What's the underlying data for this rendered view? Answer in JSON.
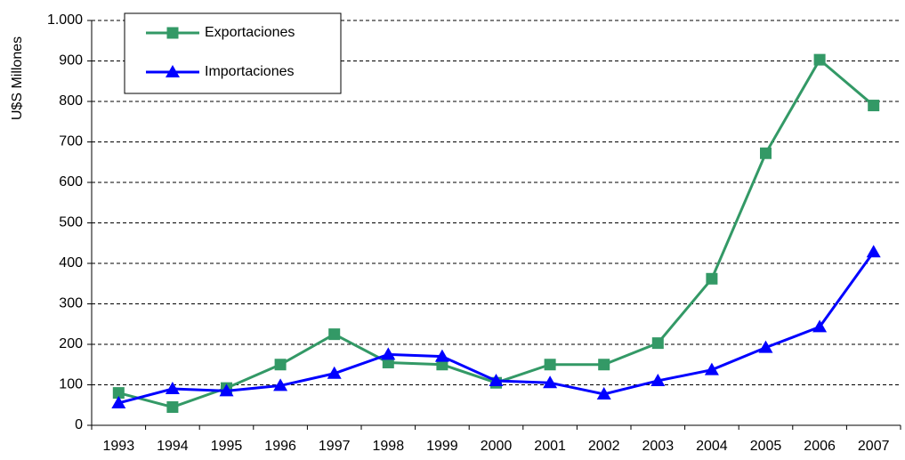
{
  "chart_data": {
    "type": "line",
    "y_label": "U$S Millones",
    "categories": [
      "1993",
      "1994",
      "1995",
      "1996",
      "1997",
      "1998",
      "1999",
      "2000",
      "2001",
      "2002",
      "2003",
      "2004",
      "2005",
      "2006",
      "2007"
    ],
    "series": [
      {
        "name": "Exportaciones",
        "color": "#339966",
        "marker": "square",
        "values": [
          80,
          45,
          92,
          150,
          225,
          155,
          150,
          105,
          150,
          150,
          203,
          362,
          672,
          903,
          790
        ]
      },
      {
        "name": "Importaciones",
        "color": "#0000ff",
        "marker": "triangle",
        "values": [
          55,
          90,
          85,
          98,
          128,
          175,
          170,
          110,
          105,
          77,
          110,
          137,
          192,
          243,
          428
        ]
      }
    ],
    "ylim": [
      0,
      1000
    ],
    "yticks": [
      0,
      100,
      200,
      300,
      400,
      500,
      600,
      700,
      800,
      900,
      {
        "value": 1000,
        "label": "1.000"
      }
    ],
    "grid": true,
    "legend": "top-left"
  }
}
